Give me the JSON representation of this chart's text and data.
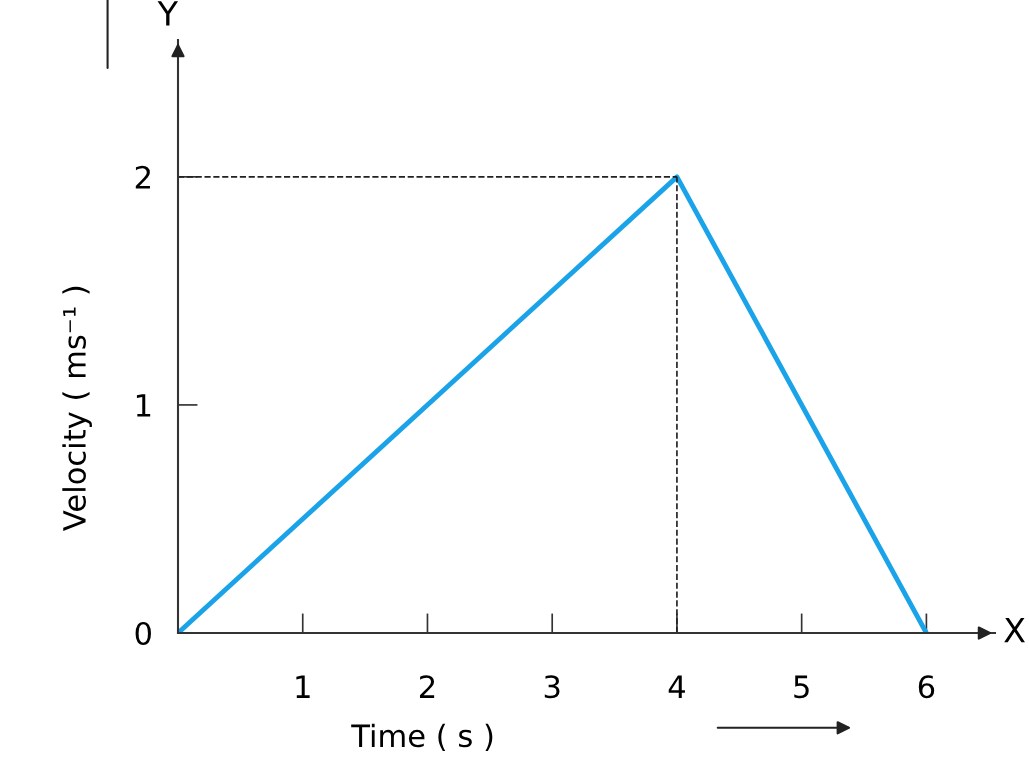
{
  "chart_data": {
    "type": "line",
    "xlabel": "Time ( s )",
    "ylabel": "Velocity ( ms⁻¹ )",
    "annotations": [
      "Y",
      "X"
    ],
    "x": [
      0,
      4,
      6
    ],
    "series": [
      {
        "color": "#1aa3e8",
        "values": [
          0,
          2,
          0
        ]
      }
    ],
    "xlim": [
      0,
      6.55
    ],
    "ylim": [
      0,
      2.6
    ],
    "xticks": [
      {
        "value": 0,
        "label": null
      },
      1,
      2,
      3,
      4,
      5,
      6
    ],
    "yticks": [
      0,
      1,
      2
    ],
    "ref_lines": [
      {
        "axis": "y",
        "value": 2,
        "line_style": "dashed",
        "color": "#222222"
      },
      {
        "axis": "x",
        "value": 4,
        "line_style": "dashed",
        "color": "#222222"
      }
    ],
    "grid": false,
    "legend": false,
    "marker": "none",
    "line_style": "solid"
  }
}
